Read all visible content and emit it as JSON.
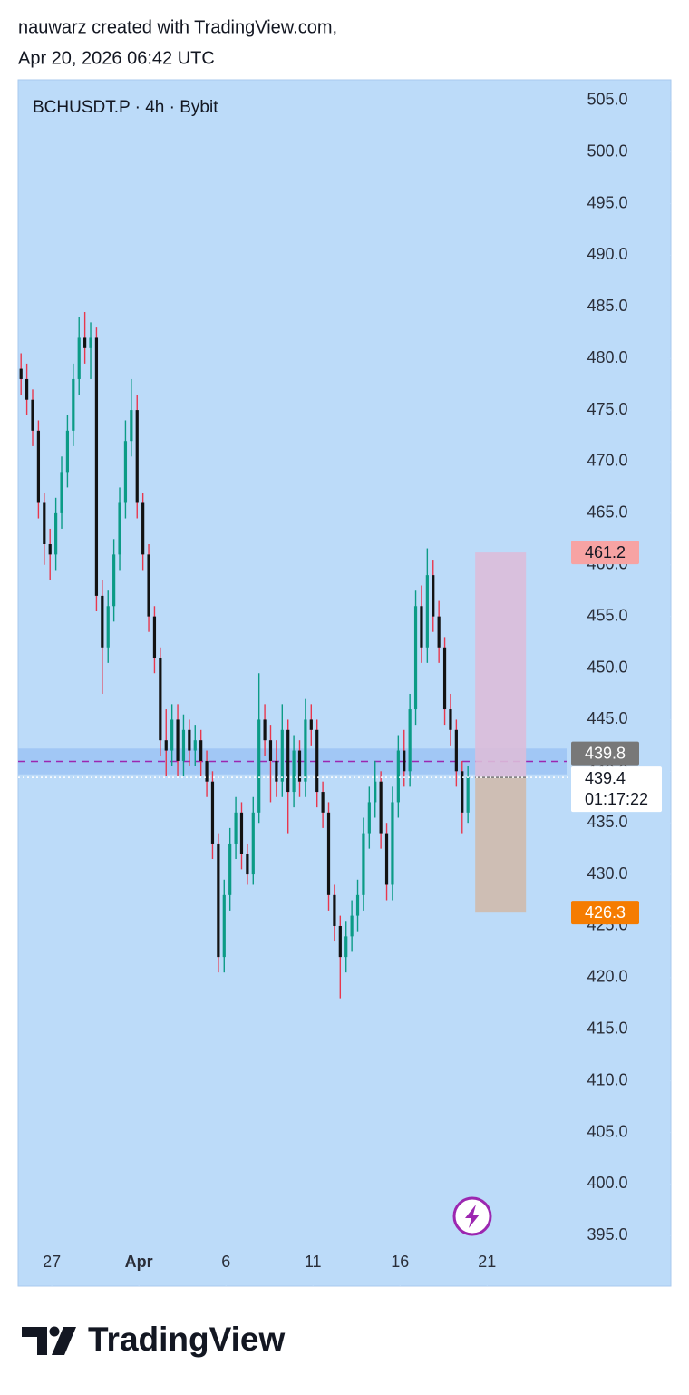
{
  "header": {
    "author": "nauwarz created with TradingView.com,",
    "date": "Apr 20, 2026 06:42 UTC"
  },
  "footer": {
    "logo": "TradingView"
  },
  "chart_data": {
    "type": "candlestick",
    "title": "BCHUSDT.P · 4h · Bybit",
    "up_color": "#0b9b86",
    "down_color": "#121212",
    "down_wick": "#e8374d",
    "background": "#bcdbf9",
    "open": [
      479,
      478,
      476,
      473,
      466,
      462,
      461,
      465,
      469,
      473,
      478,
      482,
      481,
      482,
      457,
      452,
      456,
      461,
      466,
      472,
      475,
      466,
      461,
      455,
      451,
      443,
      442,
      445,
      441,
      444,
      442,
      443,
      441,
      439,
      433,
      422,
      428,
      433,
      436,
      432,
      430,
      436,
      445,
      443,
      441,
      439,
      444,
      438,
      442,
      439,
      445,
      444,
      438,
      436,
      428,
      425,
      422,
      424,
      426,
      428,
      434,
      437,
      439,
      434,
      429,
      437,
      442,
      440,
      446,
      456,
      452,
      459,
      455,
      452,
      446,
      444,
      440,
      436
    ],
    "high": [
      480.5,
      479.5,
      477,
      474,
      467,
      463.5,
      466.5,
      470.5,
      474.5,
      479.5,
      484,
      484.5,
      483.5,
      483,
      458.5,
      457.5,
      462.5,
      467.5,
      474,
      478,
      476.5,
      467,
      462,
      456,
      452,
      446,
      446.5,
      446.5,
      445.5,
      445,
      444.5,
      444,
      442,
      440,
      434,
      429.5,
      434.5,
      437.5,
      437,
      433,
      437.5,
      449.5,
      446.5,
      444.5,
      443,
      446.5,
      445,
      443.5,
      443,
      447,
      446.5,
      445,
      439,
      437,
      429,
      426,
      425.5,
      427.5,
      429.5,
      435.5,
      438.5,
      441,
      440,
      435,
      438.5,
      443.5,
      444,
      447.5,
      457.5,
      458,
      461.6,
      460.5,
      456.5,
      453,
      447.5,
      445,
      441,
      440.5
    ],
    "low": [
      476.5,
      474.5,
      471.5,
      464.5,
      460,
      458.5,
      459.5,
      463.5,
      467.5,
      471.5,
      476.5,
      479.5,
      478,
      455.5,
      447.5,
      450.5,
      454.5,
      459.5,
      464.5,
      470.5,
      464.5,
      459.5,
      453.5,
      449.5,
      441.5,
      439.5,
      440.5,
      439.5,
      439.5,
      440.5,
      440.5,
      439.5,
      437.5,
      431.5,
      420.5,
      420.5,
      426.5,
      431.5,
      430.5,
      429,
      429,
      435,
      441.5,
      437,
      437.5,
      437.5,
      434,
      436.5,
      437.5,
      437.5,
      442.5,
      436.5,
      434.5,
      426.5,
      423.5,
      418,
      420.5,
      422.5,
      424.5,
      426.5,
      432.5,
      435.5,
      432.5,
      427.5,
      427.5,
      435.5,
      438.5,
      438.5,
      444.5,
      450.5,
      450.5,
      453.5,
      450.5,
      444.5,
      442.5,
      438.5,
      434,
      435
    ],
    "close": [
      478,
      476,
      473,
      466,
      462,
      461,
      465,
      469,
      473,
      478,
      482,
      481,
      482,
      457,
      452,
      456,
      461,
      466,
      472,
      475,
      466,
      461,
      455,
      451,
      443,
      442,
      445,
      441,
      444,
      442,
      443,
      441,
      439,
      433,
      422,
      428,
      433,
      436,
      432,
      430,
      436,
      445,
      443,
      441,
      439,
      444,
      438,
      442,
      439,
      445,
      444,
      438,
      436,
      428,
      425,
      422,
      424,
      426,
      428,
      434,
      437,
      439,
      434,
      429,
      437,
      442,
      440,
      446,
      456,
      452,
      459,
      455,
      452,
      446,
      444,
      440,
      436,
      439.4
    ],
    "xlim": [
      -0.5,
      94
    ],
    "xticks": [
      {
        "value": 5.3,
        "label": "27"
      },
      {
        "value": 20.3,
        "label": "Apr"
      },
      {
        "value": 35.3,
        "label": "6"
      },
      {
        "value": 50.3,
        "label": "11"
      },
      {
        "value": 65.3,
        "label": "16"
      },
      {
        "value": 80.3,
        "label": "21"
      }
    ],
    "ylim": [
      394.5,
      507
    ],
    "yticks": [
      {
        "value": 505,
        "label": "505.0"
      },
      {
        "value": 500,
        "label": "500.0"
      },
      {
        "value": 495,
        "label": "495.0"
      },
      {
        "value": 490,
        "label": "490.0"
      },
      {
        "value": 485,
        "label": "485.0"
      },
      {
        "value": 480,
        "label": "480.0"
      },
      {
        "value": 475,
        "label": "475.0"
      },
      {
        "value": 470,
        "label": "470.0"
      },
      {
        "value": 465,
        "label": "465.0"
      },
      {
        "value": 460,
        "label": "460.0"
      },
      {
        "value": 455,
        "label": "455.0"
      },
      {
        "value": 450,
        "label": "450.0"
      },
      {
        "value": 445,
        "label": "445.0"
      },
      {
        "value": 440,
        "label": "440.0"
      },
      {
        "value": 435,
        "label": "435.0"
      },
      {
        "value": 430,
        "label": "430.0"
      },
      {
        "value": 425,
        "label": "425.0"
      },
      {
        "value": 420,
        "label": "420.0"
      },
      {
        "value": 415,
        "label": "415.0"
      },
      {
        "value": 410,
        "label": "410.0"
      },
      {
        "value": 405,
        "label": "405.0"
      },
      {
        "value": 400,
        "label": "400.0"
      },
      {
        "value": 395,
        "label": "395.0"
      }
    ],
    "zone": [
      439.7,
      442.2
    ],
    "zone_label": 439.8,
    "last_price": 439.4,
    "countdown": "01:17:22",
    "position": {
      "stop": 461.2,
      "entry": 439.4,
      "target": 426.3,
      "x": [
        78.25,
        87
      ]
    }
  }
}
